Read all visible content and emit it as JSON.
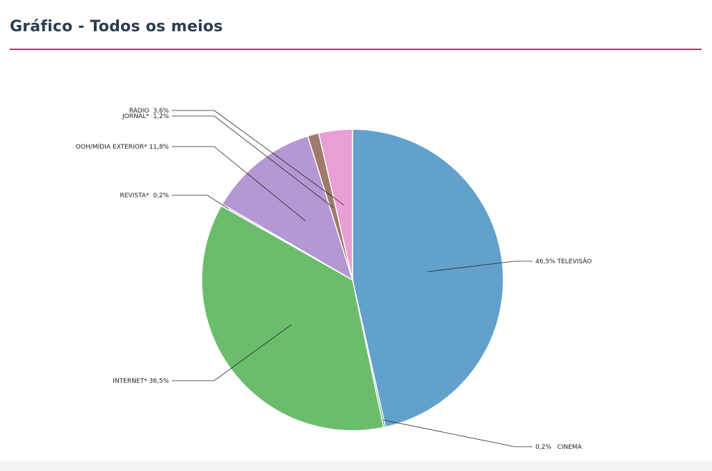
{
  "page": {
    "title": "Gráfico - Todos os meios"
  },
  "chart_data": {
    "type": "pie",
    "title": "",
    "slices": [
      {
        "label": "TELEVISÃO",
        "value": 46.5,
        "value_text": "46,5%",
        "color": "#62a1cc",
        "label_text": "46,5% TELEVISÃO"
      },
      {
        "label": "CINEMA",
        "value": 0.2,
        "value_text": "0,2%",
        "color": "#4a9a5a",
        "label_text": "0,2%   CINEMA"
      },
      {
        "label": "INTERNET*",
        "value": 36.5,
        "value_text": "36,5%",
        "color": "#6bbd6b",
        "label_text": "INTERNET* 36,5%"
      },
      {
        "label": "REVISTA*",
        "value": 0.2,
        "value_text": "0,2%",
        "color": "#c9a0d6",
        "label_text": "REVISTA*  0,2%"
      },
      {
        "label": "OOH/MÍDIA EXTERIOR*",
        "value": 11.8,
        "value_text": "11,8%",
        "color": "#b497d3",
        "label_text": "OOH/MÍDIA EXTERIOR* 11,8%"
      },
      {
        "label": "JORNAL*",
        "value": 1.2,
        "value_text": "1,2%",
        "color": "#a07a6a",
        "label_text": "JORNAL*  1,2%"
      },
      {
        "label": "RÁDIO",
        "value": 3.6,
        "value_text": "3,6%",
        "color": "#e89fd4",
        "label_text": "RÁDIO  3,6%"
      }
    ]
  }
}
